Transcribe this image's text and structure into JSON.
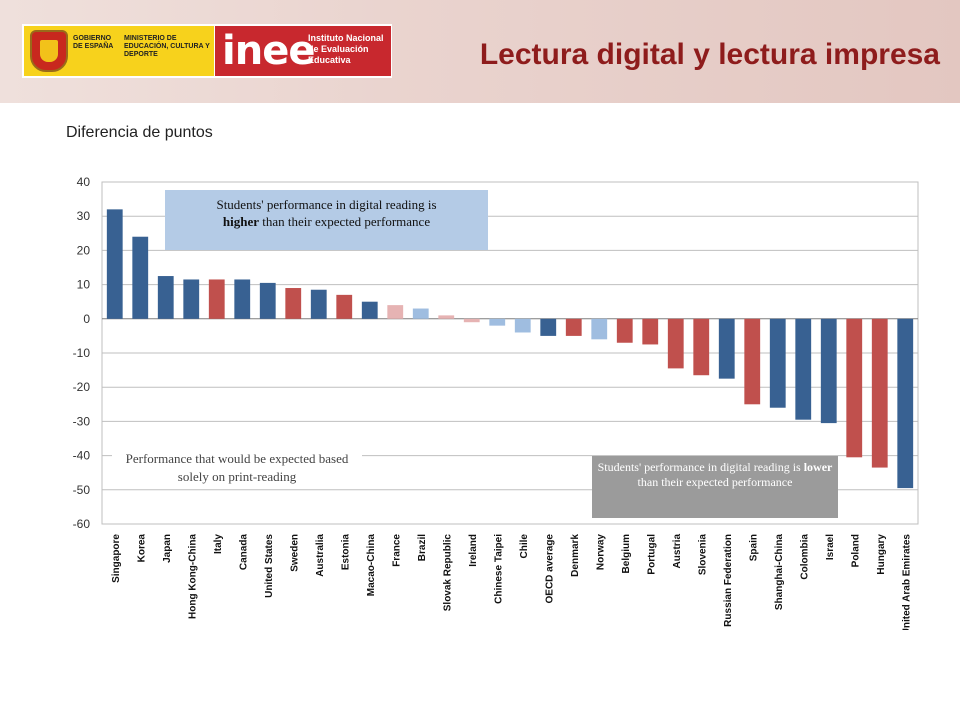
{
  "header": {
    "gov_text": "GOBIERNO DE ESPAÑA",
    "ministry_text": "MINISTERIO DE EDUCACIÓN, CULTURA Y DEPORTE",
    "inee_mark": "inee",
    "inee_text": "Instituto Nacional de Evaluación Educativa",
    "title": "Lectura digital y lectura impresa"
  },
  "subtitle": "Diferencia  de puntos",
  "annotations": {
    "top_a": "Students' performance in digital reading is",
    "top_b": "higher",
    "top_c": " than their expected performance",
    "middle": "Performance that would be expected based solely on print-reading",
    "bottom_a": "Students' performance in digital reading is ",
    "bottom_b": "lower",
    "bottom_c": " than  their expected performance"
  },
  "colors": {
    "dark_blue": "#386192",
    "red": "#c0504d",
    "light_blue": "#9fbde0",
    "light_red": "#e6b3b3"
  },
  "chart_data": {
    "type": "bar",
    "ylim": [
      -60,
      40
    ],
    "yticks": [
      40,
      30,
      20,
      10,
      0,
      -10,
      -20,
      -30,
      -40,
      -50,
      -60
    ],
    "grid": true,
    "categories": [
      "Singapore",
      "Korea",
      "Japan",
      "Hong Kong-China",
      "Italy",
      "Canada",
      "United States",
      "Sweden",
      "Australia",
      "Estonia",
      "Macao-China",
      "France",
      "Brazil",
      "Slovak Republic",
      "Ireland",
      "Chinese Taipei",
      "Chile",
      "OECD average",
      "Denmark",
      "Norway",
      "Belgium",
      "Portugal",
      "Austria",
      "Slovenia",
      "Russian Federation",
      "Spain",
      "Shanghai-China",
      "Colombia",
      "Israel",
      "Poland",
      "Hungary",
      "United Arab Emirates"
    ],
    "values": [
      32,
      24,
      12.5,
      11.5,
      11.5,
      11.5,
      10.5,
      9,
      8.5,
      7,
      5,
      4,
      3,
      1,
      -1,
      -2,
      -4,
      -5,
      -5,
      -6,
      -7,
      -7.5,
      -14.5,
      -16.5,
      -17.5,
      -25,
      -26,
      -29.5,
      -30.5,
      -40.5,
      -43.5,
      -49.5
    ],
    "bar_colors": [
      "dark_blue",
      "dark_blue",
      "dark_blue",
      "dark_blue",
      "red",
      "dark_blue",
      "dark_blue",
      "red",
      "dark_blue",
      "red",
      "dark_blue",
      "light_red",
      "light_blue",
      "light_red",
      "light_red",
      "light_blue",
      "light_blue",
      "dark_blue",
      "red",
      "light_blue",
      "red",
      "red",
      "red",
      "red",
      "dark_blue",
      "red",
      "dark_blue",
      "dark_blue",
      "dark_blue",
      "red",
      "red",
      "dark_blue"
    ]
  }
}
